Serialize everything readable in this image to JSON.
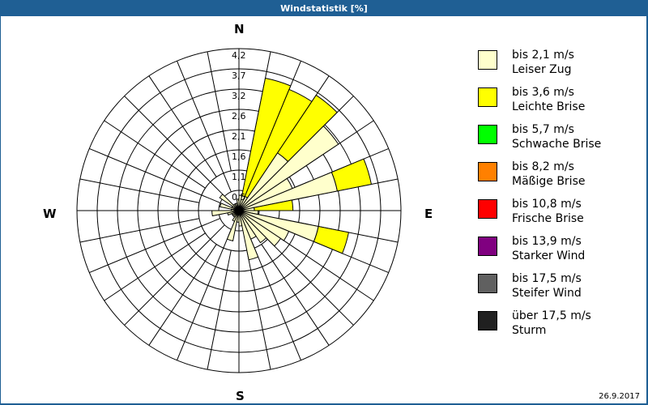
{
  "window": {
    "title": "Windstatistik [%]"
  },
  "footer": {
    "date": "26.9.2017"
  },
  "directions": {
    "n": "N",
    "e": "E",
    "s": "S",
    "w": "W"
  },
  "legend": [
    {
      "range": "bis 2,1 m/s",
      "name": "Leiser Zug",
      "color": "#ffffcc"
    },
    {
      "range": "bis 3,6 m/s",
      "name": "Leichte Brise",
      "color": "#ffff00"
    },
    {
      "range": "bis 5,7 m/s",
      "name": "Schwache Brise",
      "color": "#00ff00"
    },
    {
      "range": "bis 8,2 m/s",
      "name": "Mäßige Brise",
      "color": "#ff8000"
    },
    {
      "range": "bis 10,8 m/s",
      "name": "Frische Brise",
      "color": "#ff0000"
    },
    {
      "range": "bis 13,9 m/s",
      "name": "Starker Wind",
      "color": "#800080"
    },
    {
      "range": "bis 17,5 m/s",
      "name": "Steifer Wind",
      "color": "#606060"
    },
    {
      "range": "über 17,5 m/s",
      "name": "Sturm",
      "color": "#202020"
    }
  ],
  "chart_data": {
    "type": "wind-rose",
    "title": "Windstatistik [%]",
    "unit": "%",
    "sector_count": 32,
    "sector_width_deg": 11.25,
    "radial_ticks": [
      "0,5",
      "1,1",
      "1,6",
      "2,1",
      "2,6",
      "3,2",
      "3,7",
      "4,2"
    ],
    "rmax": 4.2,
    "series_names": [
      "bis 2,1 m/s",
      "bis 3,6 m/s"
    ],
    "sectors": [
      {
        "start": 0,
        "values": [
          0.4,
          0
        ]
      },
      {
        "start": 11.25,
        "values": [
          0.4,
          3.1
        ]
      },
      {
        "start": 22.5,
        "values": [
          0.4,
          3.0
        ]
      },
      {
        "start": 33.75,
        "values": [
          1.8,
          1.8
        ]
      },
      {
        "start": 45,
        "values": [
          3.1,
          0
        ]
      },
      {
        "start": 56.25,
        "values": [
          1.5,
          0
        ]
      },
      {
        "start": 67.5,
        "values": [
          2.6,
          0.9
        ]
      },
      {
        "start": 78.75,
        "values": [
          0.4,
          1.0
        ]
      },
      {
        "start": 90,
        "values": [
          0.5,
          0
        ]
      },
      {
        "start": 101.25,
        "values": [
          2.1,
          0.8
        ]
      },
      {
        "start": 112.5,
        "values": [
          1.4,
          0
        ]
      },
      {
        "start": 123.75,
        "values": [
          1.3,
          0
        ]
      },
      {
        "start": 135,
        "values": [
          1.0,
          0
        ]
      },
      {
        "start": 146.25,
        "values": [
          0.8,
          0
        ]
      },
      {
        "start": 157.5,
        "values": [
          1.3,
          0
        ]
      },
      {
        "start": 168.75,
        "values": [
          0.4,
          0
        ]
      },
      {
        "start": 180,
        "values": [
          0.3,
          0
        ]
      },
      {
        "start": 191.25,
        "values": [
          0.8,
          0
        ]
      },
      {
        "start": 202.5,
        "values": [
          0.3,
          0
        ]
      },
      {
        "start": 213.75,
        "values": [
          0.2,
          0
        ]
      },
      {
        "start": 225,
        "values": [
          0.2,
          0
        ]
      },
      {
        "start": 236.25,
        "values": [
          0.2,
          0
        ]
      },
      {
        "start": 247.5,
        "values": [
          0.3,
          0
        ]
      },
      {
        "start": 258.75,
        "values": [
          0.7,
          0
        ]
      },
      {
        "start": 270,
        "values": [
          0.2,
          0
        ]
      },
      {
        "start": 281.25,
        "values": [
          0.5,
          0
        ]
      },
      {
        "start": 292.5,
        "values": [
          0.2,
          0
        ]
      },
      {
        "start": 303.75,
        "values": [
          0.6,
          0
        ]
      },
      {
        "start": 315,
        "values": [
          0.2,
          0
        ]
      },
      {
        "start": 326.25,
        "values": [
          0.2,
          0
        ]
      },
      {
        "start": 337.5,
        "values": [
          0.2,
          0
        ]
      },
      {
        "start": 348.75,
        "values": [
          0.3,
          0
        ]
      }
    ]
  }
}
